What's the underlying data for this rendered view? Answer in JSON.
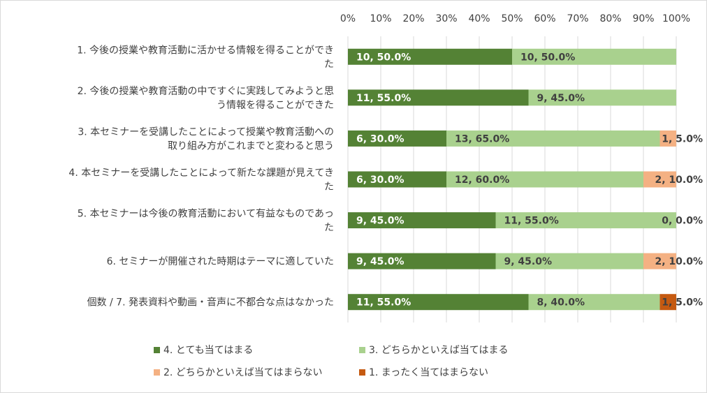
{
  "chart_data": {
    "type": "bar",
    "orientation": "horizontal",
    "stacked": "100%",
    "xlim": [
      0,
      100
    ],
    "x_ticks": [
      "0%",
      "10%",
      "20%",
      "30%",
      "40%",
      "50%",
      "60%",
      "70%",
      "80%",
      "90%",
      "100%"
    ],
    "grid": true,
    "legend_position": "bottom",
    "categories": [
      [
        "1. 今後の授業や教育活動に活かせる情報を得ることができ",
        "た"
      ],
      [
        "2. 今後の授業や教育活動の中ですぐに実践してみようと思",
        "う情報を得ることができた"
      ],
      [
        "3. 本セミナーを受講したことによって授業や教育活動への",
        "取り組み方がこれまでと変わると思う"
      ],
      [
        "4. 本セミナーを受講したことによって新たな課題が見えてき",
        "た"
      ],
      [
        "5. 本セミナーは今後の教育活動において有益なものであっ",
        "た"
      ],
      [
        "6. セミナーが開催された時期はテーマに適していた"
      ],
      [
        "個数 / 7. 発表資料や動画・音声に不都合な点はなかった"
      ]
    ],
    "series": [
      {
        "name": "4. とても当てはまる",
        "color": "#548235",
        "values": [
          50,
          55,
          30,
          30,
          45,
          45,
          55
        ],
        "labels": [
          "10, 50.0%",
          "11, 55.0%",
          "6, 30.0%",
          "6, 30.0%",
          "9, 45.0%",
          "9, 45.0%",
          "11, 55.0%"
        ]
      },
      {
        "name": "3. どちらかといえば当てはまる",
        "color": "#a9d18e",
        "values": [
          50,
          45,
          65,
          60,
          55,
          45,
          40
        ],
        "labels": [
          "10, 50.0%",
          "9, 45.0%",
          "13, 65.0%",
          "12, 60.0%",
          "11, 55.0%",
          "9, 45.0%",
          "8, 40.0%"
        ]
      },
      {
        "name": "2. どちらかといえば当てはまらない",
        "color": "#f4b183",
        "values": [
          0,
          0,
          5,
          10,
          0,
          10,
          0
        ],
        "labels": [
          "",
          "",
          "1, 5.0%",
          "2, 10.0%",
          "0, 0.0%",
          "2, 10.0%",
          ""
        ]
      },
      {
        "name": "1. まったく当てはまらない",
        "color": "#c55a11",
        "values": [
          0,
          0,
          0,
          0,
          0,
          0,
          5
        ],
        "labels": [
          "",
          "",
          "",
          "",
          "",
          "",
          "1, 5.0%"
        ]
      }
    ]
  }
}
